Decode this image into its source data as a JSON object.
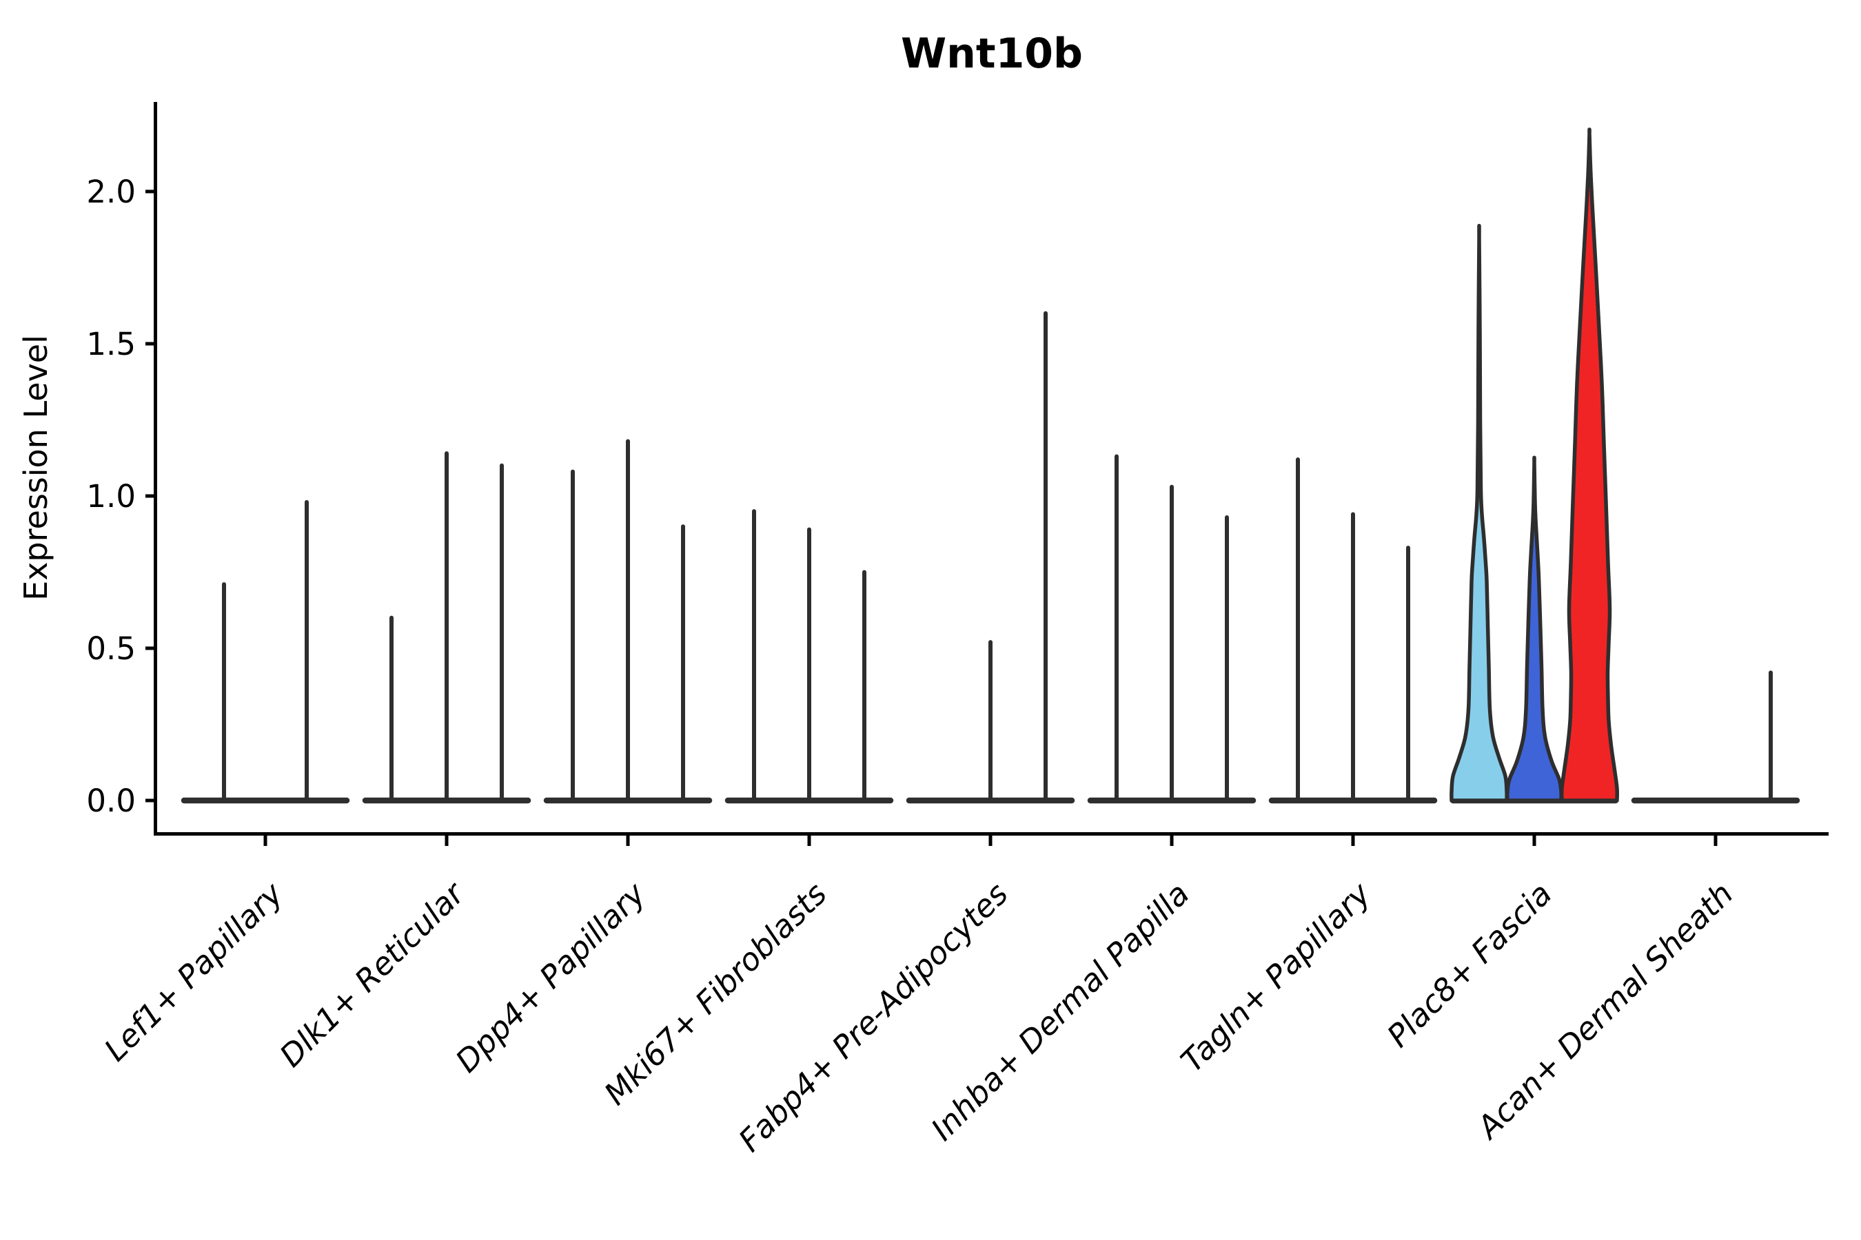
{
  "chart_data": {
    "type": "violin",
    "title": "Wnt10b",
    "ylabel": "Expression Level",
    "xlabel": "",
    "ylim": [
      -0.12,
      2.29
    ],
    "ytick_values": [
      0.0,
      0.5,
      1.0,
      1.5,
      2.0
    ],
    "ytick_labels": [
      "0.0",
      "0.5",
      "1.0",
      "1.5",
      "2.0"
    ],
    "grid": false,
    "legend": null,
    "categories": [
      "Lef1+ Papillary",
      "Dlk1+ Reticular",
      "Dpp4+ Papillary",
      "Mki67+ Fibroblasts",
      "Fabp4+ Pre-Adipocytes",
      "Inhba+ Dermal Papilla",
      "Tagln+ Papillary",
      "Plac8+ Fascia",
      "Acan+ Dermal Sheath"
    ],
    "groups": [
      {
        "label": "Lef1+ Papillary",
        "violins": [
          {
            "shape": "spike",
            "offset": -60,
            "peak": 0.71
          },
          {
            "shape": "spike",
            "offset": 60,
            "peak": 0.98
          }
        ]
      },
      {
        "label": "Dlk1+ Reticular",
        "violins": [
          {
            "shape": "spike",
            "offset": -80,
            "peak": 0.6
          },
          {
            "shape": "spike",
            "offset": 0,
            "peak": 1.14
          },
          {
            "shape": "spike",
            "offset": 80,
            "peak": 1.1
          }
        ]
      },
      {
        "label": "Dpp4+ Papillary",
        "violins": [
          {
            "shape": "spike",
            "offset": -80,
            "peak": 1.08
          },
          {
            "shape": "spike",
            "offset": 0,
            "peak": 1.18
          },
          {
            "shape": "spike",
            "offset": 80,
            "peak": 0.9
          }
        ]
      },
      {
        "label": "Mki67+ Fibroblasts",
        "violins": [
          {
            "shape": "spike",
            "offset": -80,
            "peak": 0.95
          },
          {
            "shape": "spike",
            "offset": 0,
            "peak": 0.89
          },
          {
            "shape": "spike",
            "offset": 80,
            "peak": 0.75
          }
        ]
      },
      {
        "label": "Fabp4+ Pre-Adipocytes",
        "violins": [
          {
            "shape": "flat",
            "offset": -80,
            "peak": 0
          },
          {
            "shape": "spike",
            "offset": 0,
            "peak": 0.52
          },
          {
            "shape": "spike",
            "offset": 80,
            "peak": 1.6
          }
        ]
      },
      {
        "label": "Inhba+ Dermal Papilla",
        "violins": [
          {
            "shape": "spike",
            "offset": -80,
            "peak": 1.13
          },
          {
            "shape": "spike",
            "offset": 0,
            "peak": 1.03
          },
          {
            "shape": "spike",
            "offset": 80,
            "peak": 0.93
          }
        ]
      },
      {
        "label": "Tagln+ Papillary",
        "violins": [
          {
            "shape": "spike",
            "offset": -80,
            "peak": 1.12
          },
          {
            "shape": "spike",
            "offset": 0,
            "peak": 0.94
          },
          {
            "shape": "spike",
            "offset": 80,
            "peak": 0.83
          }
        ]
      },
      {
        "label": "Plac8+ Fascia",
        "violins": [
          {
            "shape": "violin",
            "offset": -80,
            "peak": 1.85,
            "fill": "#87CEEB",
            "profile": [
              [
                1.85,
                0
              ],
              [
                1.55,
                1
              ],
              [
                1.25,
                1.5
              ],
              [
                1.02,
                2.5
              ],
              [
                0.94,
                4
              ],
              [
                0.86,
                7
              ],
              [
                0.78,
                9.5
              ],
              [
                0.72,
                11
              ],
              [
                0.58,
                12.5
              ],
              [
                0.44,
                14
              ],
              [
                0.3,
                15.5
              ],
              [
                0.21,
                20
              ],
              [
                0.14,
                29
              ],
              [
                0.08,
                38
              ],
              [
                0.03,
                40
              ],
              [
                0.0,
                40
              ]
            ]
          },
          {
            "shape": "violin",
            "offset": 0,
            "peak": 1.11,
            "fill": "#3E64D8",
            "profile": [
              [
                1.11,
                0
              ],
              [
                0.98,
                1
              ],
              [
                0.92,
                2
              ],
              [
                0.86,
                3.5
              ],
              [
                0.78,
                5.5
              ],
              [
                0.72,
                6.7
              ],
              [
                0.58,
                8.7
              ],
              [
                0.44,
                10.5
              ],
              [
                0.3,
                12
              ],
              [
                0.21,
                15.5
              ],
              [
                0.13,
                25
              ],
              [
                0.07,
                36
              ],
              [
                0.03,
                39
              ],
              [
                0.0,
                39
              ]
            ]
          },
          {
            "shape": "violin",
            "offset": 80,
            "peak": 2.19,
            "fill": "#F02425",
            "profile": [
              [
                2.19,
                0
              ],
              [
                2.08,
                1.5
              ],
              [
                1.96,
                4
              ],
              [
                1.76,
                9
              ],
              [
                1.57,
                13.5
              ],
              [
                1.37,
                18
              ],
              [
                1.17,
                21
              ],
              [
                0.98,
                24
              ],
              [
                0.78,
                27
              ],
              [
                0.63,
                29.5
              ],
              [
                0.52,
                28
              ],
              [
                0.42,
                26.5
              ],
              [
                0.33,
                27
              ],
              [
                0.26,
                28
              ],
              [
                0.18,
                31.5
              ],
              [
                0.1,
                36.5
              ],
              [
                0.04,
                40
              ],
              [
                0.0,
                40
              ]
            ]
          }
        ]
      },
      {
        "label": "Acan+ Dermal Sheath",
        "violins": [
          {
            "shape": "flat",
            "offset": -80,
            "peak": 0
          },
          {
            "shape": "flat",
            "offset": 0,
            "peak": 0
          },
          {
            "shape": "spike",
            "offset": 80,
            "peak": 0.42
          }
        ]
      }
    ],
    "colors": {
      "outline": "#2E2E2E",
      "axis": "#000000",
      "background": "#FFFFFF",
      "highlight_fills": [
        "#87CEEB",
        "#3E64D8",
        "#F02425"
      ]
    }
  }
}
